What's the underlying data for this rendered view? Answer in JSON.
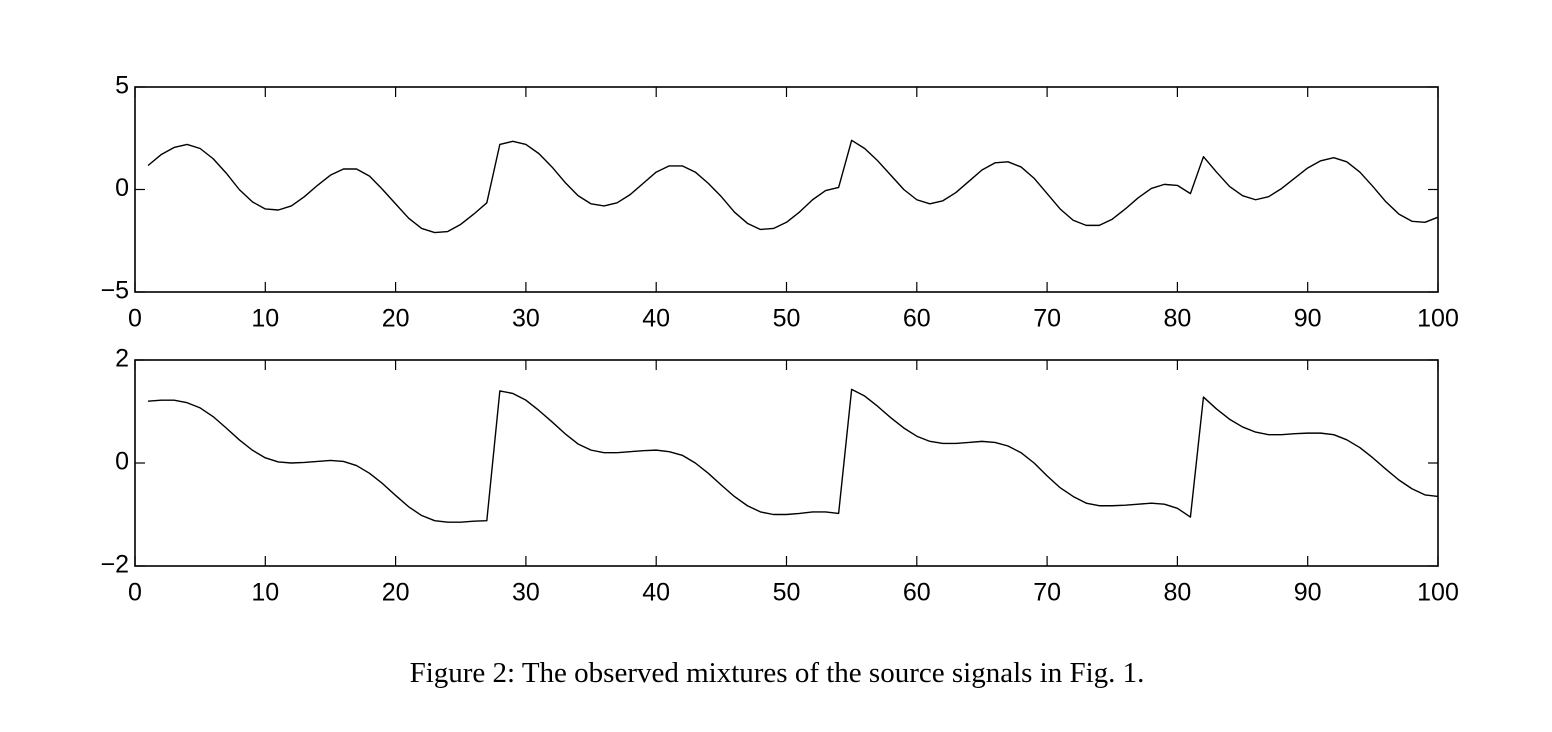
{
  "chart_data": [
    {
      "type": "line",
      "x": [
        1,
        2,
        3,
        4,
        5,
        6,
        7,
        8,
        9,
        10,
        11,
        12,
        13,
        14,
        15,
        16,
        17,
        18,
        19,
        20,
        21,
        22,
        23,
        24,
        25,
        26,
        27,
        28,
        29,
        30,
        31,
        32,
        33,
        34,
        35,
        36,
        37,
        38,
        39,
        40,
        41,
        42,
        43,
        44,
        45,
        46,
        47,
        48,
        49,
        50,
        51,
        52,
        53,
        54,
        55,
        56,
        57,
        58,
        59,
        60,
        61,
        62,
        63,
        64,
        65,
        66,
        67,
        68,
        69,
        70,
        71,
        72,
        73,
        74,
        75,
        76,
        77,
        78,
        79,
        80,
        81,
        82,
        83,
        84,
        85,
        86,
        87,
        88,
        89,
        90,
        91,
        92,
        93,
        94,
        95,
        96,
        97,
        98,
        99,
        100
      ],
      "values": [
        1.17,
        1.7,
        2.05,
        2.2,
        2.0,
        1.5,
        0.8,
        0.0,
        -0.6,
        -0.95,
        -1.0,
        -0.8,
        -0.35,
        0.2,
        0.7,
        1.0,
        1.0,
        0.65,
        0.0,
        -0.7,
        -1.4,
        -1.9,
        -2.1,
        -2.05,
        -1.7,
        -1.2,
        -0.65,
        2.2,
        2.35,
        2.2,
        1.75,
        1.1,
        0.35,
        -0.3,
        -0.7,
        -0.8,
        -0.65,
        -0.25,
        0.3,
        0.85,
        1.15,
        1.15,
        0.85,
        0.3,
        -0.35,
        -1.1,
        -1.65,
        -1.95,
        -1.9,
        -1.6,
        -1.1,
        -0.5,
        -0.05,
        0.1,
        2.4,
        2.0,
        1.4,
        0.7,
        0.0,
        -0.5,
        -0.7,
        -0.55,
        -0.15,
        0.4,
        0.95,
        1.3,
        1.35,
        1.1,
        0.55,
        -0.2,
        -0.95,
        -1.5,
        -1.75,
        -1.75,
        -1.45,
        -0.95,
        -0.4,
        0.05,
        0.25,
        0.2,
        -0.2,
        1.6,
        0.85,
        0.15,
        -0.3,
        -0.5,
        -0.35,
        0.05,
        0.55,
        1.05,
        1.4,
        1.55,
        1.35,
        0.85,
        0.15,
        -0.6,
        -1.2,
        -1.55,
        -1.6,
        -1.35
      ],
      "color": "#000000",
      "xlim": [
        0,
        100
      ],
      "xticks": [
        0,
        10,
        20,
        30,
        40,
        50,
        60,
        70,
        80,
        90,
        100
      ],
      "ylim": [
        -5,
        5
      ],
      "yticks": [
        {
          "value": -5,
          "label": "−5"
        },
        0,
        5
      ]
    },
    {
      "type": "line",
      "x": [
        1,
        2,
        3,
        4,
        5,
        6,
        7,
        8,
        9,
        10,
        11,
        12,
        13,
        14,
        15,
        16,
        17,
        18,
        19,
        20,
        21,
        22,
        23,
        24,
        25,
        26,
        27,
        28,
        29,
        30,
        31,
        32,
        33,
        34,
        35,
        36,
        37,
        38,
        39,
        40,
        41,
        42,
        43,
        44,
        45,
        46,
        47,
        48,
        49,
        50,
        51,
        52,
        53,
        54,
        55,
        56,
        57,
        58,
        59,
        60,
        61,
        62,
        63,
        64,
        65,
        66,
        67,
        68,
        69,
        70,
        71,
        72,
        73,
        74,
        75,
        76,
        77,
        78,
        79,
        80,
        81,
        82,
        83,
        84,
        85,
        86,
        87,
        88,
        89,
        90,
        91,
        92,
        93,
        94,
        95,
        96,
        97,
        98,
        99,
        100
      ],
      "values": [
        1.2,
        1.22,
        1.22,
        1.17,
        1.07,
        0.9,
        0.68,
        0.45,
        0.25,
        0.1,
        0.02,
        0.0,
        0.01,
        0.03,
        0.05,
        0.03,
        -0.05,
        -0.2,
        -0.4,
        -0.63,
        -0.85,
        -1.02,
        -1.12,
        -1.15,
        -1.15,
        -1.13,
        -1.12,
        1.4,
        1.35,
        1.22,
        1.02,
        0.8,
        0.57,
        0.37,
        0.25,
        0.2,
        0.2,
        0.22,
        0.24,
        0.25,
        0.22,
        0.15,
        0.0,
        -0.2,
        -0.43,
        -0.65,
        -0.83,
        -0.95,
        -1.0,
        -1.0,
        -0.98,
        -0.95,
        -0.95,
        -0.98,
        1.43,
        1.3,
        1.1,
        0.88,
        0.68,
        0.52,
        0.42,
        0.38,
        0.38,
        0.4,
        0.42,
        0.4,
        0.33,
        0.2,
        0.0,
        -0.25,
        -0.48,
        -0.65,
        -0.78,
        -0.83,
        -0.83,
        -0.82,
        -0.8,
        -0.78,
        -0.8,
        -0.88,
        -1.05,
        1.28,
        1.05,
        0.85,
        0.7,
        0.6,
        0.55,
        0.55,
        0.57,
        0.58,
        0.58,
        0.55,
        0.45,
        0.3,
        0.1,
        -0.12,
        -0.33,
        -0.5,
        -0.62,
        -0.65
      ],
      "color": "#000000",
      "xlim": [
        0,
        100
      ],
      "xticks": [
        0,
        10,
        20,
        30,
        40,
        50,
        60,
        70,
        80,
        90,
        100
      ],
      "ylim": [
        -2,
        2
      ],
      "yticks": [
        {
          "value": -2,
          "label": "−2"
        },
        0,
        2
      ]
    }
  ],
  "caption": "Figure 2: The observed mixtures of the source signals in Fig. 1."
}
